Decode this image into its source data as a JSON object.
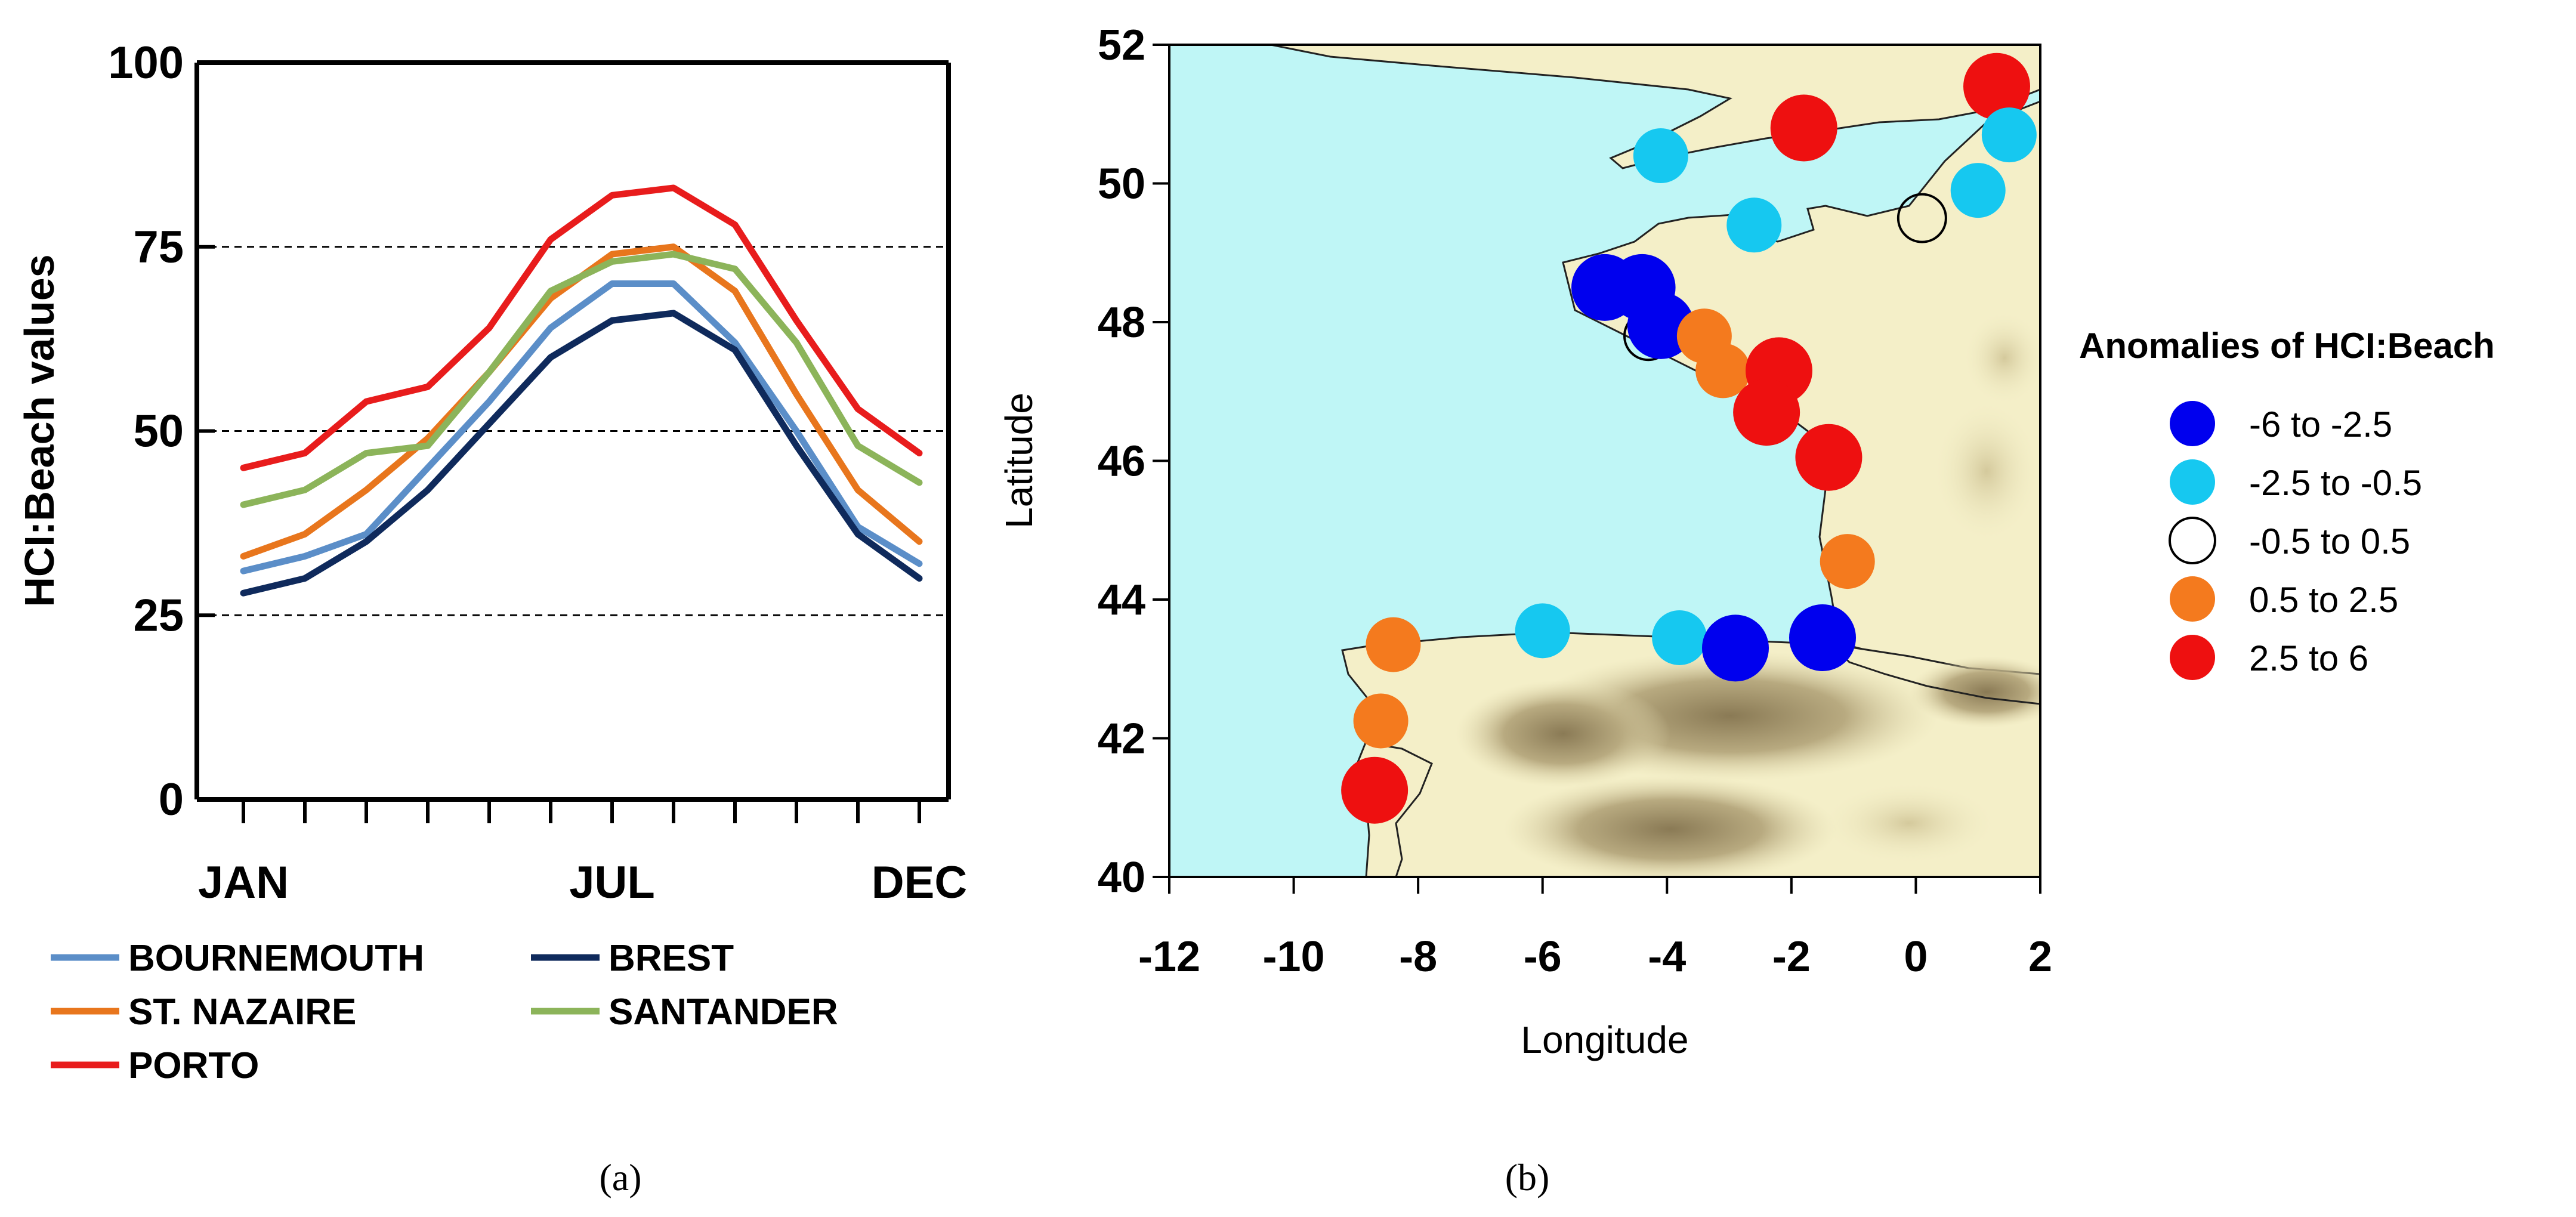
{
  "chart_data": [
    {
      "type": "line",
      "panel_label": "(a)",
      "ylabel": "HCI:Beach values",
      "ylim": [
        0,
        100
      ],
      "yticks": [
        0,
        25,
        50,
        75,
        100
      ],
      "reference_lines": [
        25,
        50,
        75
      ],
      "x_tick_labels": [
        {
          "label": "JAN",
          "month": 1
        },
        {
          "label": "JUL",
          "month": 7
        },
        {
          "label": "DEC",
          "month": 12
        }
      ],
      "months": [
        1,
        2,
        3,
        4,
        5,
        6,
        7,
        8,
        9,
        10,
        11,
        12
      ],
      "series": [
        {
          "name": "BOURNEMOUTH",
          "color": "#5b8ec8",
          "values": [
            31,
            33,
            36,
            45,
            54,
            64,
            70,
            70,
            62,
            50,
            37,
            32
          ]
        },
        {
          "name": "BREST",
          "color": "#0f2a5c",
          "values": [
            28,
            30,
            35,
            42,
            51,
            60,
            65,
            66,
            61,
            48,
            36,
            30
          ]
        },
        {
          "name": "ST. NAZAIRE",
          "color": "#e8761d",
          "values": [
            33,
            36,
            42,
            49,
            58,
            68,
            74,
            75,
            69,
            55,
            42,
            35
          ]
        },
        {
          "name": "SANTANDER",
          "color": "#8cb45a",
          "values": [
            40,
            42,
            47,
            48,
            58,
            69,
            73,
            74,
            72,
            62,
            48,
            43
          ]
        },
        {
          "name": "PORTO",
          "color": "#e81c1c",
          "values": [
            45,
            47,
            54,
            56,
            64,
            76,
            82,
            83,
            78,
            65,
            53,
            47
          ]
        }
      ]
    },
    {
      "type": "scatter",
      "panel_label": "(b)",
      "xlabel": "Longitude",
      "ylabel": "Latitude",
      "xlim": [
        -12,
        2
      ],
      "ylim": [
        40,
        52
      ],
      "xticks": [
        -12,
        -10,
        -8,
        -6,
        -4,
        -2,
        0,
        2
      ],
      "yticks": [
        40,
        42,
        44,
        46,
        48,
        50,
        52
      ],
      "legend": {
        "title": "Anomalies of HCI:Beach",
        "classes": [
          {
            "label": "-6  to  -2.5",
            "color": "#0000ee",
            "hollow": false
          },
          {
            "label": "-2.5  to  -0.5",
            "color": "#16c8f0",
            "hollow": false
          },
          {
            "label": "-0.5  to  0.5",
            "color": "#ffffff",
            "hollow": true
          },
          {
            "label": "0.5  to  2.5",
            "color": "#f47a1e",
            "hollow": false
          },
          {
            "label": "2.5  to  6",
            "color": "#ee1010",
            "hollow": false
          }
        ]
      },
      "points": [
        {
          "lon": 1.3,
          "lat": 51.4,
          "cls": 4
        },
        {
          "lon": -1.8,
          "lat": 50.8,
          "cls": 4
        },
        {
          "lon": 1.5,
          "lat": 50.7,
          "cls": 1
        },
        {
          "lon": -4.1,
          "lat": 50.4,
          "cls": 1
        },
        {
          "lon": 1.0,
          "lat": 49.9,
          "cls": 1
        },
        {
          "lon": 0.1,
          "lat": 49.5,
          "cls": 2
        },
        {
          "lon": -2.6,
          "lat": 49.4,
          "cls": 1
        },
        {
          "lon": -5.0,
          "lat": 48.5,
          "cls": 0
        },
        {
          "lon": -4.4,
          "lat": 48.5,
          "cls": 0
        },
        {
          "lon": -4.3,
          "lat": 47.8,
          "cls": 2
        },
        {
          "lon": -4.1,
          "lat": 47.95,
          "cls": 0
        },
        {
          "lon": -3.4,
          "lat": 47.8,
          "cls": 3
        },
        {
          "lon": -3.1,
          "lat": 47.3,
          "cls": 3
        },
        {
          "lon": -2.2,
          "lat": 47.3,
          "cls": 4
        },
        {
          "lon": -2.4,
          "lat": 46.7,
          "cls": 4
        },
        {
          "lon": -1.4,
          "lat": 46.05,
          "cls": 4
        },
        {
          "lon": -1.1,
          "lat": 44.55,
          "cls": 3
        },
        {
          "lon": -6.0,
          "lat": 43.55,
          "cls": 1
        },
        {
          "lon": -3.8,
          "lat": 43.45,
          "cls": 1
        },
        {
          "lon": -2.9,
          "lat": 43.3,
          "cls": 0
        },
        {
          "lon": -1.5,
          "lat": 43.45,
          "cls": 0
        },
        {
          "lon": -8.4,
          "lat": 43.35,
          "cls": 3
        },
        {
          "lon": -8.6,
          "lat": 42.25,
          "cls": 3
        },
        {
          "lon": -8.7,
          "lat": 41.25,
          "cls": 4
        }
      ]
    }
  ]
}
